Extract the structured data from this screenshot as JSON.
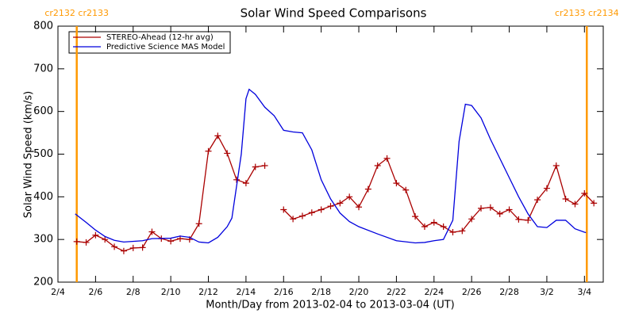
{
  "chart_data": {
    "type": "line",
    "title": "Solar Wind Speed Comparisons",
    "x_label": "Month/Day from 2013-02-04 to 2013-03-04 (UT)",
    "y_label": "Solar Wind Speed (km/s)",
    "xlim": [
      "2013-02-04 00:00",
      "2013-03-05 00:00"
    ],
    "ylim": [
      200,
      800
    ],
    "xticks": [
      {
        "value": "2013-02-04 00:00",
        "label": "2/4"
      },
      {
        "value": "2013-02-06 00:00",
        "label": "2/6"
      },
      {
        "value": "2013-02-08 00:00",
        "label": "2/8"
      },
      {
        "value": "2013-02-10 00:00",
        "label": "2/10"
      },
      {
        "value": "2013-02-12 00:00",
        "label": "2/12"
      },
      {
        "value": "2013-02-14 00:00",
        "label": "2/14"
      },
      {
        "value": "2013-02-16 00:00",
        "label": "2/16"
      },
      {
        "value": "2013-02-18 00:00",
        "label": "2/18"
      },
      {
        "value": "2013-02-20 00:00",
        "label": "2/20"
      },
      {
        "value": "2013-02-22 00:00",
        "label": "2/22"
      },
      {
        "value": "2013-02-24 00:00",
        "label": "2/24"
      },
      {
        "value": "2013-02-26 00:00",
        "label": "2/26"
      },
      {
        "value": "2013-02-28 00:00",
        "label": "2/28"
      },
      {
        "value": "2013-03-02 00:00",
        "label": "3/2"
      },
      {
        "value": "2013-03-04 00:00",
        "label": "3/4"
      }
    ],
    "yticks": [
      200,
      300,
      400,
      500,
      600,
      700,
      800
    ],
    "markers": [
      {
        "x": "2013-02-05 00:00",
        "label": "cr2132 cr2133",
        "color": "#ff9900"
      },
      {
        "x": "2013-03-04 03:00",
        "label": "cr2133 cr2134",
        "color": "#ff9900"
      }
    ],
    "series": [
      {
        "name": "STEREO-Ahead (12-hr avg)",
        "color": "#aa0000",
        "marker": "+",
        "x": [
          "2013-02-05 00:00",
          "2013-02-05 12:00",
          "2013-02-06 00:00",
          "2013-02-06 12:00",
          "2013-02-07 00:00",
          "2013-02-07 12:00",
          "2013-02-08 00:00",
          "2013-02-08 12:00",
          "2013-02-09 00:00",
          "2013-02-09 12:00",
          "2013-02-10 00:00",
          "2013-02-10 12:00",
          "2013-02-11 00:00",
          "2013-02-11 12:00",
          "2013-02-12 00:00",
          "2013-02-12 12:00",
          "2013-02-13 00:00",
          "2013-02-13 12:00",
          "2013-02-14 00:00",
          "2013-02-14 12:00",
          "2013-02-15 00:00",
          "2013-02-15 12:00",
          "2013-02-16 00:00",
          "2013-02-16 12:00",
          "2013-02-17 00:00",
          "2013-02-17 12:00",
          "2013-02-18 00:00",
          "2013-02-18 12:00",
          "2013-02-19 00:00",
          "2013-02-19 12:00",
          "2013-02-20 00:00",
          "2013-02-20 12:00",
          "2013-02-21 00:00",
          "2013-02-21 12:00",
          "2013-02-22 00:00",
          "2013-02-22 12:00",
          "2013-02-23 00:00",
          "2013-02-23 12:00",
          "2013-02-24 00:00",
          "2013-02-24 12:00",
          "2013-02-25 00:00",
          "2013-02-25 12:00",
          "2013-02-26 00:00",
          "2013-02-26 12:00",
          "2013-02-27 00:00",
          "2013-02-27 12:00",
          "2013-02-28 00:00",
          "2013-02-28 12:00",
          "2013-03-01 00:00",
          "2013-03-01 12:00",
          "2013-03-02 00:00",
          "2013-03-02 12:00",
          "2013-03-03 00:00",
          "2013-03-03 12:00",
          "2013-03-04 00:00",
          "2013-03-04 12:00"
        ],
        "values": [
          295,
          293,
          310,
          300,
          283,
          273,
          280,
          281,
          318,
          302,
          296,
          302,
          300,
          337,
          507,
          543,
          502,
          440,
          432,
          470,
          473,
          null,
          370,
          348,
          355,
          363,
          370,
          378,
          385,
          400,
          376,
          418,
          473,
          490,
          432,
          416,
          354,
          330,
          340,
          330,
          317,
          320,
          348,
          373,
          375,
          360,
          370,
          347,
          345,
          393,
          420,
          473,
          395,
          383,
          408,
          385
        ]
      },
      {
        "name": "Predictive Science MAS Model",
        "color": "#0000dd",
        "x": [
          "2013-02-04 22:00",
          "2013-02-05 12:00",
          "2013-02-06 00:00",
          "2013-02-06 12:00",
          "2013-02-07 00:00",
          "2013-02-07 12:00",
          "2013-02-08 12:00",
          "2013-02-09 00:00",
          "2013-02-10 00:00",
          "2013-02-10 12:00",
          "2013-02-11 00:00",
          "2013-02-11 12:00",
          "2013-02-12 00:00",
          "2013-02-12 12:00",
          "2013-02-13 00:00",
          "2013-02-13 06:00",
          "2013-02-13 18:00",
          "2013-02-14 00:00",
          "2013-02-14 04:00",
          "2013-02-14 12:00",
          "2013-02-15 00:00",
          "2013-02-15 12:00",
          "2013-02-16 00:00",
          "2013-02-16 12:00",
          "2013-02-17 00:00",
          "2013-02-17 12:00",
          "2013-02-18 00:00",
          "2013-02-18 12:00",
          "2013-02-19 00:00",
          "2013-02-19 12:00",
          "2013-02-20 00:00",
          "2013-02-21 00:00",
          "2013-02-22 00:00",
          "2013-02-23 00:00",
          "2013-02-23 12:00",
          "2013-02-24 00:00",
          "2013-02-24 12:00",
          "2013-02-25 00:00",
          "2013-02-25 08:00",
          "2013-02-25 16:00",
          "2013-02-26 00:00",
          "2013-02-26 12:00",
          "2013-02-27 00:00",
          "2013-02-27 12:00",
          "2013-02-28 00:00",
          "2013-02-28 12:00",
          "2013-03-01 00:00",
          "2013-03-01 12:00",
          "2013-03-02 00:00",
          "2013-03-02 12:00",
          "2013-03-03 00:00",
          "2013-03-03 12:00",
          "2013-03-04 00:00",
          "2013-03-04 02:00"
        ],
        "values": [
          360,
          340,
          322,
          307,
          298,
          294,
          297,
          302,
          303,
          308,
          305,
          294,
          292,
          305,
          330,
          350,
          500,
          630,
          652,
          640,
          610,
          590,
          556,
          552,
          550,
          510,
          440,
          395,
          362,
          342,
          330,
          313,
          297,
          292,
          293,
          297,
          300,
          345,
          530,
          617,
          614,
          585,
          535,
          490,
          445,
          400,
          360,
          330,
          328,
          345,
          345,
          325,
          317,
          316
        ]
      }
    ]
  }
}
